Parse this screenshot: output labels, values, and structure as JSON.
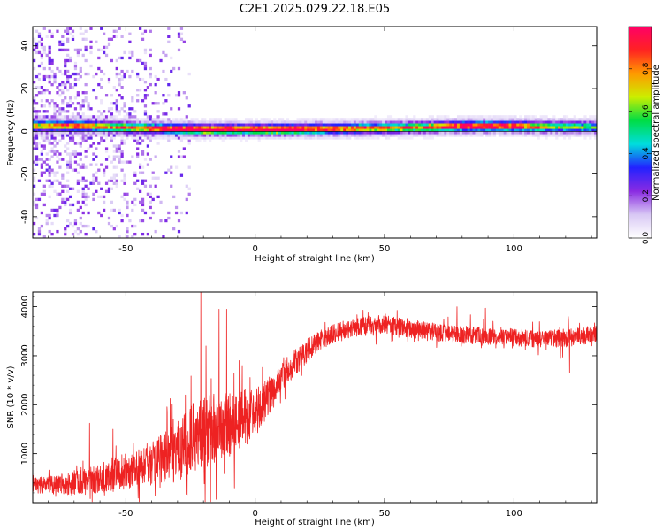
{
  "figure_title": "C2E1.2025.029.22.18.E05",
  "chart_data": [
    {
      "type": "heatmap",
      "title": "C2E1.2025.029.22.18.E05",
      "xlabel": "Height of straight line (km)",
      "ylabel": "Frequency (Hz)",
      "xlim": [
        -86,
        132
      ],
      "ylim": [
        -50,
        49
      ],
      "xticks": [
        -50,
        0,
        50,
        100
      ],
      "yticks": [
        -40,
        -20,
        0,
        20,
        40
      ],
      "xtick_labels": [
        "-50",
        "0",
        "50",
        "100"
      ],
      "ytick_labels": [
        "-40",
        "-20",
        "0",
        "20",
        "40"
      ],
      "colorbar": {
        "label": "Normalized spectral amplitude",
        "range": [
          0.0,
          1.0
        ],
        "ticks": [
          0.0,
          0.2,
          0.4,
          0.6,
          0.8
        ],
        "tick_labels": [
          "0.0",
          "0.2",
          "0.4",
          "0.6",
          "0.8"
        ],
        "colormap": [
          "#ffffff",
          "#d8c8f4",
          "#8a2be2",
          "#2222ff",
          "#00dddd",
          "#00dd44",
          "#ccee00",
          "#ff9900",
          "#ff2222",
          "#ff0066"
        ]
      },
      "ridge": {
        "description_values_frequency_hz_by_height_km": [
          [
            -86,
            2.0
          ],
          [
            -70,
            2.0
          ],
          [
            -60,
            1.6
          ],
          [
            -45,
            1.0
          ],
          [
            -30,
            0.5
          ],
          [
            -20,
            0.2
          ],
          [
            -10,
            0.3
          ],
          [
            0,
            0.2
          ],
          [
            20,
            0.4
          ],
          [
            40,
            0.8
          ],
          [
            60,
            1.2
          ],
          [
            80,
            1.8
          ],
          [
            95,
            1.8
          ],
          [
            110,
            1.5
          ],
          [
            132,
            1.4
          ]
        ],
        "peak_amplitude_by_height_km": [
          [
            -86,
            0.55
          ],
          [
            -70,
            0.7
          ],
          [
            -55,
            0.6
          ],
          [
            -40,
            0.75
          ],
          [
            -25,
            0.9
          ],
          [
            -15,
            0.92
          ],
          [
            -5,
            0.85
          ],
          [
            10,
            0.95
          ],
          [
            30,
            0.7
          ],
          [
            60,
            0.6
          ],
          [
            85,
            0.9
          ],
          [
            100,
            0.8
          ],
          [
            115,
            0.45
          ],
          [
            132,
            0.4
          ]
        ]
      }
    },
    {
      "type": "line",
      "title": "",
      "xlabel": "Height of straight line (km)",
      "ylabel": "SNR (10 * v/v)",
      "xlim": [
        -86,
        132
      ],
      "ylim": [
        0,
        4300
      ],
      "xticks": [
        -50,
        0,
        50,
        100
      ],
      "yticks": [
        1000,
        2000,
        3000,
        4000
      ],
      "xtick_labels": [
        "-50",
        "0",
        "50",
        "100"
      ],
      "ytick_labels": [
        "1000",
        "2000",
        "3000",
        "4000"
      ],
      "series": [
        {
          "name": "SNR",
          "color": "#ee2222",
          "envelope_mean": [
            [
              -86,
              350
            ],
            [
              -70,
              380
            ],
            [
              -60,
              500
            ],
            [
              -50,
              650
            ],
            [
              -40,
              800
            ],
            [
              -30,
              1050
            ],
            [
              -25,
              1300
            ],
            [
              -20,
              1500
            ],
            [
              -15,
              1500
            ],
            [
              -10,
              1600
            ],
            [
              -5,
              1700
            ],
            [
              0,
              1850
            ],
            [
              5,
              2150
            ],
            [
              10,
              2500
            ],
            [
              15,
              2850
            ],
            [
              20,
              3100
            ],
            [
              25,
              3300
            ],
            [
              30,
              3450
            ],
            [
              40,
              3600
            ],
            [
              50,
              3650
            ],
            [
              60,
              3550
            ],
            [
              75,
              3450
            ],
            [
              90,
              3400
            ],
            [
              110,
              3350
            ],
            [
              120,
              3350
            ],
            [
              132,
              3450
            ]
          ],
          "noise_amplitude": [
            [
              -86,
              150
            ],
            [
              -60,
              300
            ],
            [
              -40,
              450
            ],
            [
              -20,
              800
            ],
            [
              -5,
              600
            ],
            [
              10,
              300
            ],
            [
              30,
              200
            ],
            [
              60,
              180
            ],
            [
              100,
              180
            ],
            [
              132,
              180
            ]
          ],
          "spikes": [
            [
              -64,
              1620
            ],
            [
              -55,
              1500
            ],
            [
              -34,
              1850
            ],
            [
              -27,
              2200
            ],
            [
              -21,
              4300
            ],
            [
              -19,
              3200
            ],
            [
              -14,
              3950
            ],
            [
              -11,
              3950
            ],
            [
              -8,
              300
            ],
            [
              -5,
              2800
            ],
            [
              3,
              2500
            ],
            [
              78,
              4000
            ],
            [
              89,
              3970
            ],
            [
              121,
              3800
            ],
            [
              121.5,
              2650
            ]
          ]
        }
      ]
    }
  ]
}
